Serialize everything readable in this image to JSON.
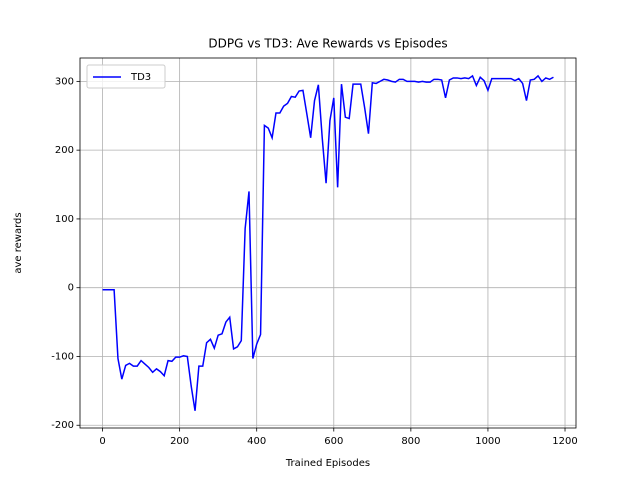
{
  "chart_data": {
    "type": "line",
    "title": "DDPG vs TD3: Ave Rewards vs Episodes",
    "x_label": "Trained Episodes",
    "y_label": "ave rewards",
    "x": [
      0,
      10,
      20,
      30,
      40,
      50,
      60,
      70,
      80,
      90,
      100,
      110,
      120,
      130,
      140,
      150,
      160,
      170,
      180,
      190,
      200,
      210,
      220,
      230,
      240,
      250,
      260,
      270,
      280,
      290,
      300,
      310,
      320,
      330,
      340,
      350,
      360,
      370,
      380,
      390,
      400,
      410,
      420,
      430,
      440,
      450,
      460,
      470,
      480,
      490,
      500,
      510,
      520,
      530,
      540,
      550,
      560,
      570,
      580,
      590,
      600,
      610,
      620,
      630,
      640,
      650,
      660,
      670,
      680,
      690,
      700,
      710,
      720,
      730,
      740,
      750,
      760,
      770,
      780,
      790,
      800,
      810,
      820,
      830,
      840,
      850,
      860,
      870,
      880,
      890,
      900,
      910,
      920,
      930,
      940,
      950,
      960,
      970,
      980,
      990,
      1000,
      1010,
      1020,
      1030,
      1040,
      1050,
      1060,
      1070,
      1080,
      1090,
      1100,
      1110,
      1120,
      1130,
      1140,
      1150,
      1160,
      1170
    ],
    "series": [
      {
        "name": "TD3",
        "color": "#0000ff",
        "values": [
          -3,
          -3,
          -3,
          -3,
          -103,
          -133,
          -113,
          -110,
          -114,
          -114,
          -106,
          -111,
          -116,
          -123,
          -118,
          -122,
          -128,
          -106,
          -107,
          -101,
          -101,
          -99,
          -100,
          -143,
          -179,
          -114,
          -114,
          -80,
          -75,
          -88,
          -69,
          -67,
          -50,
          -43,
          -89,
          -86,
          -77,
          86,
          140,
          -103,
          -82,
          -68,
          236,
          232,
          218,
          254,
          254,
          264,
          268,
          278,
          277,
          286,
          287,
          253,
          218,
          272,
          295,
          218,
          152,
          243,
          276,
          146,
          296,
          248,
          246,
          296,
          296,
          296,
          262,
          224,
          298,
          297,
          300,
          303,
          302,
          300,
          299,
          303,
          303,
          300,
          300,
          300,
          299,
          300,
          299,
          299,
          303,
          303,
          302,
          276,
          302,
          305,
          305,
          304,
          305,
          304,
          308,
          294,
          306,
          301,
          287,
          304,
          304,
          304,
          304,
          304,
          304,
          301,
          304,
          297,
          272,
          302,
          303,
          308,
          300,
          305,
          303,
          306
        ]
      }
    ],
    "xlim": [
      -58.5,
      1228.5
    ],
    "xticks": [
      0,
      200,
      400,
      600,
      800,
      1000,
      1200
    ],
    "ylim": [
      -204,
      334
    ],
    "yticks": [
      -200,
      -100,
      0,
      100,
      200,
      300
    ],
    "grid": true,
    "legend": "upper left"
  }
}
